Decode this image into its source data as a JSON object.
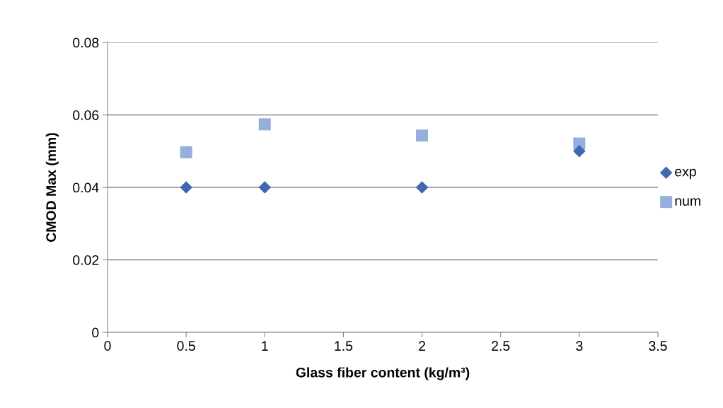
{
  "chart_data": {
    "type": "scatter",
    "xlabel": "Glass fiber content (kg/m³)",
    "ylabel": "CMOD Max (mm)",
    "xlim": [
      0,
      3.5
    ],
    "xticks": [
      0,
      0.5,
      1,
      1.5,
      2,
      2.5,
      3,
      3.5
    ],
    "ylim": [
      0,
      0.08
    ],
    "yticks": [
      0,
      0.02,
      0.04,
      0.06,
      0.08
    ],
    "grid": "y",
    "legend": "right",
    "series": [
      {
        "name": "exp",
        "color": "#4068b0",
        "marker": "diamond",
        "x": [
          0.5,
          1,
          2,
          3
        ],
        "values": [
          0.04,
          0.04,
          0.04,
          0.05
        ]
      },
      {
        "name": "num",
        "color": "#97aedd",
        "marker": "square",
        "x": [
          0.5,
          1,
          2,
          3
        ],
        "values": [
          0.0497,
          0.0574,
          0.0543,
          0.0521
        ]
      }
    ]
  }
}
